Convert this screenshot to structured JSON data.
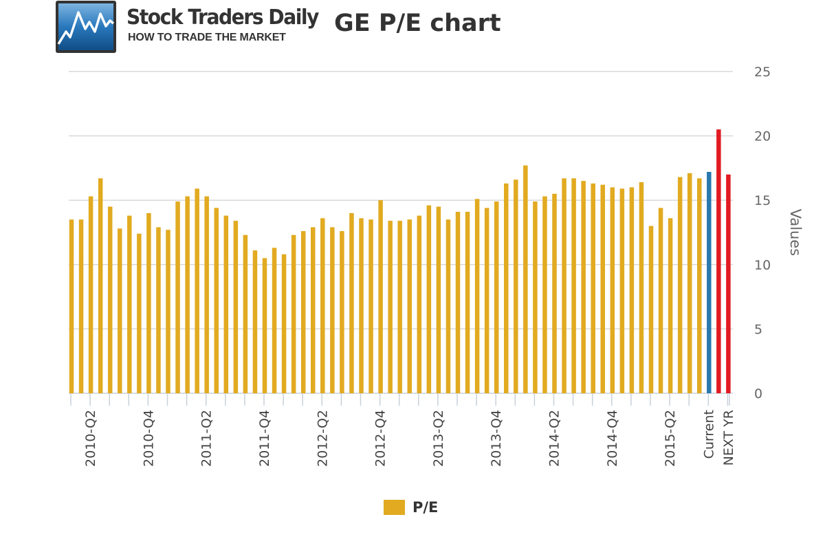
{
  "header": {
    "brand_name": "Stock Traders Daily",
    "brand_tagline": "HOW TO TRADE THE MARKET",
    "logo_icon": "chart-line-icon"
  },
  "colors": {
    "pe_bar": "#E1AA20",
    "current_bar": "#2A78AE",
    "next_year_bar": "#E11A22",
    "grid": "#D8D8D8",
    "text": "#333333",
    "axis_text": "#666666"
  },
  "chart_data": {
    "type": "bar",
    "title": "GE P/E chart",
    "xlabel": "",
    "ylabel": "Values",
    "y_axis_position": "right",
    "ylim": [
      0,
      25
    ],
    "yticks": [
      0,
      5,
      10,
      15,
      20,
      25
    ],
    "grid": true,
    "legend": {
      "placement": "bottom-center",
      "entries": [
        "P/E"
      ]
    },
    "categories": [
      "",
      "",
      "2010-Q2",
      "",
      "",
      "",
      "",
      "",
      "2010-Q4",
      "",
      "",
      "",
      "",
      "",
      "2011-Q2",
      "",
      "",
      "",
      "",
      "",
      "2011-Q4",
      "",
      "",
      "",
      "",
      "",
      "2012-Q2",
      "",
      "",
      "",
      "",
      "",
      "2012-Q4",
      "",
      "",
      "",
      "",
      "",
      "2013-Q2",
      "",
      "",
      "",
      "",
      "",
      "2013-Q4",
      "",
      "",
      "",
      "",
      "",
      "2014-Q2",
      "",
      "",
      "",
      "",
      "",
      "2014-Q4",
      "",
      "",
      "",
      "",
      "",
      "2015-Q2",
      "",
      "",
      "",
      "Current",
      "NEXT YR",
      "NEXT YR"
    ],
    "series": [
      {
        "name": "P/E",
        "values": [
          13.5,
          13.5,
          15.3,
          16.7,
          14.5,
          12.8,
          13.8,
          12.4,
          14.0,
          12.9,
          12.7,
          14.9,
          15.3,
          15.9,
          15.3,
          14.4,
          13.8,
          13.4,
          12.3,
          11.1,
          10.5,
          11.3,
          10.8,
          12.3,
          12.6,
          12.9,
          13.6,
          12.9,
          12.6,
          14.0,
          13.6,
          13.5,
          15.0,
          13.4,
          13.4,
          13.5,
          13.8,
          14.6,
          14.5,
          13.5,
          14.1,
          14.1,
          15.1,
          14.4,
          14.9,
          16.3,
          16.6,
          17.7,
          14.9,
          15.3,
          15.5,
          16.7,
          16.7,
          16.5,
          16.3,
          16.2,
          16.0,
          15.9,
          16.0,
          16.4,
          13.0,
          14.4,
          13.6,
          16.8,
          17.1,
          16.7,
          17.2,
          20.5,
          17.0
        ]
      }
    ],
    "bar_colors": {
      "default": "pe_bar",
      "Current": "current_bar",
      "NEXT YR": "next_year_bar"
    }
  }
}
